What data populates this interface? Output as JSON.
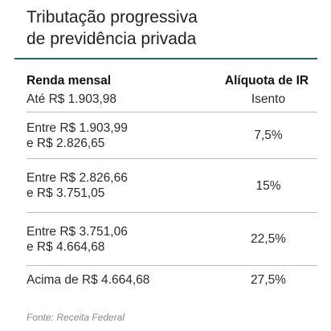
{
  "title": {
    "line1": "Tributação progressiva",
    "line2": "de previdência privada"
  },
  "table": {
    "headers": {
      "left": "Renda mensal",
      "right": "Alíquota de IR"
    },
    "rows": [
      {
        "income_line1": "Até R$ 1.903,98",
        "income_line2": "",
        "rate": "Isento"
      },
      {
        "income_line1": "Entre R$ 1.903,99",
        "income_line2": "e R$ 2.826,65",
        "rate": "7,5%"
      },
      {
        "income_line1": "Entre R$ 2.826,66",
        "income_line2": "e R$ 3.751,05",
        "rate": "15%"
      },
      {
        "income_line1": "Entre R$ 3.751,06",
        "income_line2": "e R$ 4.664,68",
        "rate": "22,5%"
      },
      {
        "income_line1": "Acima de R$ 4.664,68",
        "income_line2": "",
        "rate": "27,5%"
      }
    ]
  },
  "source": "Fonte: Receita Federal",
  "colors": {
    "accent_rule": "#23635f",
    "divider": "#bfbfbf",
    "source_text": "#8a8a8a"
  }
}
